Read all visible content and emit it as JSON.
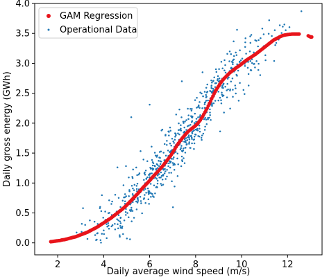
{
  "chart_data": {
    "type": "scatter",
    "xlabel": "Daily average wind speed (m/s)",
    "ylabel": "Daily gross energy (GWh)",
    "xlim": [
      1.0,
      13.5
    ],
    "ylim": [
      -0.2,
      4.0
    ],
    "xticks": [
      2,
      4,
      6,
      8,
      10,
      12
    ],
    "xtick_labels": [
      "2",
      "4",
      "6",
      "8",
      "10",
      "12"
    ],
    "yticks": [
      0.0,
      0.5,
      1.0,
      1.5,
      2.0,
      2.5,
      3.0,
      3.5,
      4.0
    ],
    "ytick_labels": [
      "0.0",
      "0.5",
      "1.0",
      "1.5",
      "2.0",
      "2.5",
      "3.0",
      "3.5",
      "4.0"
    ],
    "legend_position": "top-left",
    "series": [
      {
        "name": "GAM Regression",
        "color": "#e8141b",
        "marker": "large-dot",
        "points": [
          [
            1.7,
            0.02
          ],
          [
            1.8,
            0.025
          ],
          [
            1.9,
            0.03
          ],
          [
            2.0,
            0.035
          ],
          [
            2.1,
            0.04
          ],
          [
            2.2,
            0.05
          ],
          [
            2.3,
            0.055
          ],
          [
            2.4,
            0.065
          ],
          [
            2.5,
            0.075
          ],
          [
            2.6,
            0.085
          ],
          [
            2.7,
            0.095
          ],
          [
            2.8,
            0.105
          ],
          [
            2.9,
            0.12
          ],
          [
            3.0,
            0.135
          ],
          [
            3.1,
            0.15
          ],
          [
            3.2,
            0.165
          ],
          [
            3.3,
            0.18
          ],
          [
            3.4,
            0.2
          ],
          [
            3.5,
            0.22
          ],
          [
            3.6,
            0.24
          ],
          [
            3.7,
            0.26
          ],
          [
            3.8,
            0.285
          ],
          [
            3.9,
            0.31
          ],
          [
            4.0,
            0.335
          ],
          [
            4.1,
            0.36
          ],
          [
            4.2,
            0.385
          ],
          [
            4.3,
            0.41
          ],
          [
            4.4,
            0.44
          ],
          [
            4.5,
            0.47
          ],
          [
            4.6,
            0.5
          ],
          [
            4.7,
            0.53
          ],
          [
            4.8,
            0.56
          ],
          [
            4.9,
            0.595
          ],
          [
            5.0,
            0.63
          ],
          [
            5.1,
            0.67
          ],
          [
            5.2,
            0.71
          ],
          [
            5.3,
            0.75
          ],
          [
            5.4,
            0.79
          ],
          [
            5.5,
            0.83
          ],
          [
            5.6,
            0.875
          ],
          [
            5.7,
            0.92
          ],
          [
            5.8,
            0.96
          ],
          [
            5.9,
            1.0
          ],
          [
            6.0,
            1.04
          ],
          [
            6.1,
            1.085
          ],
          [
            6.2,
            1.13
          ],
          [
            6.3,
            1.17
          ],
          [
            6.4,
            1.21
          ],
          [
            6.5,
            1.255
          ],
          [
            6.6,
            1.3
          ],
          [
            6.7,
            1.35
          ],
          [
            6.8,
            1.4
          ],
          [
            6.9,
            1.45
          ],
          [
            7.0,
            1.51
          ],
          [
            7.1,
            1.57
          ],
          [
            7.2,
            1.635
          ],
          [
            7.3,
            1.69
          ],
          [
            7.4,
            1.74
          ],
          [
            7.5,
            1.785
          ],
          [
            7.6,
            1.83
          ],
          [
            7.7,
            1.87
          ],
          [
            7.8,
            1.9
          ],
          [
            7.9,
            1.93
          ],
          [
            8.0,
            1.96
          ],
          [
            8.1,
            2.0
          ],
          [
            8.2,
            2.05
          ],
          [
            8.3,
            2.11
          ],
          [
            8.4,
            2.18
          ],
          [
            8.5,
            2.25
          ],
          [
            8.6,
            2.33
          ],
          [
            8.7,
            2.41
          ],
          [
            8.8,
            2.49
          ],
          [
            8.9,
            2.56
          ],
          [
            9.0,
            2.62
          ],
          [
            9.1,
            2.68
          ],
          [
            9.2,
            2.73
          ],
          [
            9.3,
            2.77
          ],
          [
            9.4,
            2.81
          ],
          [
            9.5,
            2.845
          ],
          [
            9.6,
            2.875
          ],
          [
            9.7,
            2.905
          ],
          [
            9.8,
            2.935
          ],
          [
            9.9,
            2.96
          ],
          [
            10.0,
            2.99
          ],
          [
            10.1,
            3.02
          ],
          [
            10.2,
            3.05
          ],
          [
            10.3,
            3.075
          ],
          [
            10.4,
            3.1
          ],
          [
            10.5,
            3.125
          ],
          [
            10.6,
            3.15
          ],
          [
            10.7,
            3.18
          ],
          [
            10.8,
            3.21
          ],
          [
            10.9,
            3.24
          ],
          [
            11.0,
            3.27
          ],
          [
            11.1,
            3.3
          ],
          [
            11.2,
            3.33
          ],
          [
            11.3,
            3.36
          ],
          [
            11.4,
            3.39
          ],
          [
            11.5,
            3.41
          ],
          [
            11.6,
            3.43
          ],
          [
            11.7,
            3.45
          ],
          [
            11.8,
            3.465
          ],
          [
            11.9,
            3.475
          ],
          [
            12.0,
            3.48
          ],
          [
            12.1,
            3.485
          ],
          [
            12.2,
            3.49
          ],
          [
            12.3,
            3.49
          ],
          [
            12.4,
            3.49
          ],
          [
            12.5,
            3.49
          ],
          [
            12.9,
            3.46
          ],
          [
            13.0,
            3.44
          ],
          [
            13.05,
            3.44
          ]
        ]
      },
      {
        "name": "Operational Data",
        "color": "#1f77b4",
        "marker": "small-dot",
        "count": 700,
        "noise_sd": 0.22,
        "x_range": [
          1.7,
          13.0
        ],
        "outliers": [
          [
            12.6,
            3.87
          ],
          [
            10.9,
            3.58
          ],
          [
            11.2,
            3.72
          ],
          [
            9.8,
            3.56
          ],
          [
            8.3,
            2.85
          ],
          [
            6.0,
            2.31
          ],
          [
            5.2,
            2.1
          ],
          [
            4.6,
            1.26
          ],
          [
            7.4,
            2.7
          ],
          [
            3.1,
            0.58
          ]
        ]
      }
    ]
  }
}
